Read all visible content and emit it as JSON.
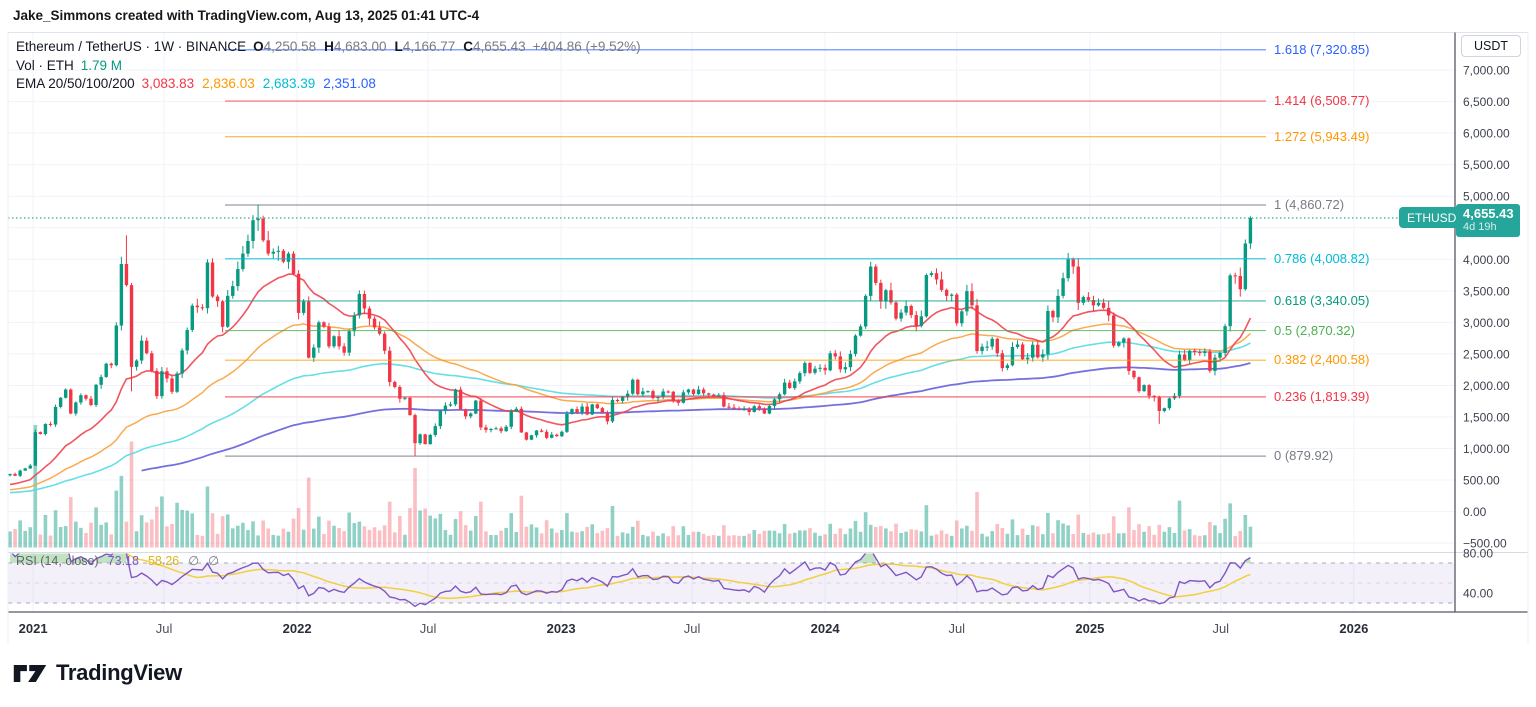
{
  "header": {
    "credit": "Jake_Simmons created with TradingView.com, Aug 13, 2025 01:41 UTC-4"
  },
  "legend": {
    "symbol_title": "Ethereum / TetherUS · 1W · BINANCE",
    "ohlc": [
      {
        "k": "O",
        "v": "4,250.58"
      },
      {
        "k": "H",
        "v": "4,683.00"
      },
      {
        "k": "L",
        "v": "4,166.77"
      },
      {
        "k": "C",
        "v": "4,655.43"
      }
    ],
    "change": "+404.86 (+9.52%)",
    "volume_label": "Vol · ETH",
    "volume_value": "1.79 M",
    "ema_label": "EMA 20/50/100/200",
    "ema_values": [
      {
        "text": "3,083.83",
        "color": "#f23645"
      },
      {
        "text": "2,836.03",
        "color": "#ff9800"
      },
      {
        "text": "2,683.39",
        "color": "#00bcd4"
      },
      {
        "text": "2,351.08",
        "color": "#2962ff"
      }
    ]
  },
  "rsi_legend": {
    "label": "RSI (14, close)",
    "rsi_value": "73.18",
    "ma_value": "58.26",
    "empty1": "∅",
    "empty2": "∅",
    "rsi_color": "#7e57c2",
    "ma_color": "#d8b512"
  },
  "price_badge": {
    "symbol": "ETHUSDT",
    "price": "4,655.43",
    "countdown": "4d 19h",
    "color": "#26a69a"
  },
  "price_scale": {
    "currency": "USDT",
    "ticks": [
      {
        "label": "7,000.00",
        "value": 7000
      },
      {
        "label": "6,500.00",
        "value": 6500
      },
      {
        "label": "6,000.00",
        "value": 6000
      },
      {
        "label": "5,500.00",
        "value": 5500
      },
      {
        "label": "5,000.00",
        "value": 5000
      },
      {
        "label": "4,500.00",
        "value": 4500
      },
      {
        "label": "4,000.00",
        "value": 4000
      },
      {
        "label": "3,500.00",
        "value": 3500
      },
      {
        "label": "3,000.00",
        "value": 3000
      },
      {
        "label": "2,500.00",
        "value": 2500
      },
      {
        "label": "2,000.00",
        "value": 2000
      },
      {
        "label": "1,500.00",
        "value": 1500
      },
      {
        "label": "1,000.00",
        "value": 1000
      },
      {
        "label": "500.00",
        "value": 500
      },
      {
        "label": "0.00",
        "value": 0
      },
      {
        "label": "−500.00",
        "value": -500
      }
    ]
  },
  "rsi_scale": {
    "ticks": [
      {
        "label": "80.00",
        "value": 80
      },
      {
        "label": "40.00",
        "value": 40
      }
    ]
  },
  "time_axis": {
    "labels": [
      {
        "text": "2021",
        "year": true
      },
      {
        "text": "Jul",
        "year": false
      },
      {
        "text": "2022",
        "year": true
      },
      {
        "text": "Jul",
        "year": false
      },
      {
        "text": "2023",
        "year": true
      },
      {
        "text": "Jul",
        "year": false
      },
      {
        "text": "2024",
        "year": true
      },
      {
        "text": "Jul",
        "year": false
      },
      {
        "text": "2025",
        "year": true
      },
      {
        "text": "Jul",
        "year": false
      },
      {
        "text": "2026",
        "year": true
      }
    ]
  },
  "fib_levels": [
    {
      "label": "1.618 (7,320.85)",
      "value": 7320.85,
      "color": "#2962ff"
    },
    {
      "label": "1.414 (6,508.77)",
      "value": 6508.77,
      "color": "#f23645"
    },
    {
      "label": "1.272 (5,943.49)",
      "value": 5943.49,
      "color": "#ff9800"
    },
    {
      "label": "1 (4,860.72)",
      "value": 4860.72,
      "color": "#787b86"
    },
    {
      "label": "0.786 (4,008.82)",
      "value": 4008.82,
      "color": "#00bcd4"
    },
    {
      "label": "0.618 (3,340.05)",
      "value": 3340.05,
      "color": "#089981"
    },
    {
      "label": "0.5 (2,870.32)",
      "value": 2870.32,
      "color": "#4caf50"
    },
    {
      "label": "0.382 (2,400.58)",
      "value": 2400.58,
      "color": "#ff9800"
    },
    {
      "label": "0.236 (1,819.39)",
      "value": 1819.39,
      "color": "#f23645"
    },
    {
      "label": "0 (879.92)",
      "value": 879.92,
      "color": "#787b86"
    }
  ],
  "footer": {
    "brand": "TradingView"
  },
  "chart_data": {
    "type": "candlestick",
    "title": "Ethereum / TetherUS",
    "symbol": "ETHUSDT",
    "exchange": "BINANCE",
    "interval": "1W",
    "last_candle": {
      "open": 4250.58,
      "high": 4683.0,
      "low": 4166.77,
      "close": 4655.43,
      "change": 404.86,
      "change_pct": 9.52
    },
    "current_price": 4655.43,
    "volume_current_display": "1.79 M",
    "x_tick_labels": [
      "2021",
      "Jul",
      "2022",
      "Jul",
      "2023",
      "Jul",
      "2024",
      "Jul",
      "2025",
      "Jul",
      "2026"
    ],
    "y_tick_values": [
      7000,
      6500,
      6000,
      5500,
      5000,
      4500,
      4000,
      3500,
      3000,
      2500,
      2000,
      1500,
      1000,
      500,
      0,
      -500
    ],
    "rsi_tick_values": [
      80,
      40
    ],
    "ema_periods": [
      20,
      50,
      100,
      200
    ],
    "ema_current": [
      3083.83,
      2836.03,
      2683.39,
      2351.08
    ],
    "ema_line_colors": [
      "#f0434e",
      "#f9a13d",
      "#55dce2",
      "#6661d9"
    ],
    "rsi": {
      "period": 14,
      "source": "close",
      "current": 73.18,
      "ma_current": 58.26,
      "upper": 70,
      "middle": 50,
      "lower": 30
    },
    "candle_colors": {
      "up": "#089981",
      "down": "#f23645"
    },
    "volume_colors": {
      "up": "rgba(8,153,129,0.45)",
      "down": "rgba(242,54,69,0.32)"
    },
    "x_start_week": "2020-11-30",
    "lead_in_closes": [
      239,
      262,
      317,
      386,
      390,
      433,
      395,
      387,
      353,
      365,
      341,
      378,
      368,
      387,
      414,
      448,
      461,
      508,
      560,
      575
    ],
    "weekly_closes": [
      597,
      568,
      650,
      685,
      730,
      1260,
      1230,
      1390,
      1380,
      1660,
      1805,
      1935,
      1555,
      1730,
      1845,
      1790,
      1690,
      2010,
      2135,
      2345,
      2320,
      2950,
      3925,
      3590,
      2295,
      2395,
      2710,
      2510,
      2230,
      1830,
      2225,
      2110,
      1900,
      2190,
      2555,
      2880,
      3265,
      3240,
      3225,
      3950,
      3410,
      3335,
      2930,
      3420,
      3575,
      3845,
      4090,
      4290,
      4620,
      4645,
      4300,
      4090,
      4120,
      4135,
      3960,
      4090,
      3770,
      3150,
      3330,
      2440,
      2600,
      3000,
      2930,
      2620,
      2780,
      2620,
      2520,
      2860,
      3110,
      3450,
      3220,
      3060,
      2920,
      2820,
      2550,
      2055,
      1975,
      1790,
      1805,
      1530,
      1085,
      1225,
      1070,
      1215,
      1355,
      1600,
      1680,
      1700,
      1935,
      1620,
      1510,
      1555,
      1760,
      1335,
      1295,
      1310,
      1320,
      1275,
      1345,
      1590,
      1630,
      1255,
      1140,
      1210,
      1285,
      1265,
      1170,
      1220,
      1195,
      1265,
      1550,
      1625,
      1570,
      1665,
      1540,
      1700,
      1640,
      1565,
      1430,
      1770,
      1755,
      1820,
      1870,
      2090,
      1860,
      1905,
      1910,
      1800,
      1815,
      1905,
      1900,
      1750,
      1725,
      1890,
      1935,
      1865,
      1935,
      1875,
      1855,
      1830,
      1845,
      1665,
      1650,
      1630,
      1615,
      1625,
      1580,
      1670,
      1635,
      1555,
      1675,
      1780,
      1860,
      2045,
      1960,
      2065,
      2195,
      2355,
      2200,
      2265,
      2280,
      2240,
      2510,
      2460,
      2255,
      2290,
      2500,
      2790,
      2935,
      3420,
      3885,
      3625,
      3330,
      3510,
      3315,
      3060,
      3155,
      3260,
      3115,
      2945,
      3095,
      3750,
      3780,
      3680,
      3515,
      3420,
      3440,
      2985,
      3175,
      3495,
      3270,
      2545,
      2615,
      2615,
      2740,
      2510,
      2275,
      2320,
      2610,
      2650,
      2415,
      2440,
      2645,
      2445,
      2495,
      3180,
      3080,
      3420,
      3700,
      4000,
      3885,
      3310,
      3400,
      3355,
      3270,
      3310,
      3230,
      3110,
      2630,
      2680,
      2745,
      2230,
      2130,
      1910,
      2005,
      1835,
      1810,
      1595,
      1640,
      1795,
      1835,
      2490,
      2400,
      2550,
      2530,
      2515,
      2540,
      2230,
      2440,
      2515,
      2940,
      3745,
      3735,
      3525,
      4250,
      4655.43
    ],
    "wick_overrides": {
      "23": {
        "high": 4380
      },
      "24": {
        "low": 1905
      },
      "49": {
        "high": 4868,
        "low": 4450
      },
      "80": {
        "low": 880
      },
      "209": {
        "high": 4100
      },
      "227": {
        "low": 1390
      },
      "245": {
        "open": 4250.58,
        "high": 4683,
        "low": 4166.77,
        "close": 4655.43
      }
    },
    "fib_anchor_high": 4860.72,
    "fib_anchor_low": 879.92,
    "grid": true,
    "legend_position": "top-left"
  }
}
